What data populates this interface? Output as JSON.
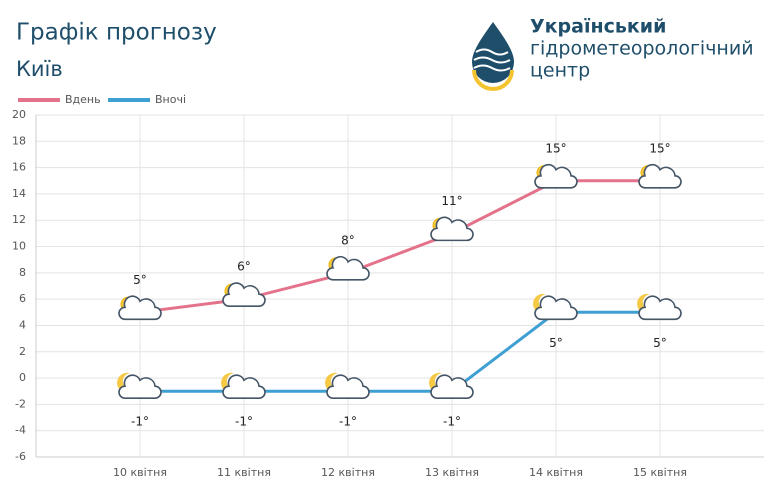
{
  "header": {
    "title": "Графік прогнозу",
    "city": "Київ"
  },
  "logo": {
    "lines": [
      "Український",
      "гідрометеорологічний",
      "центр"
    ]
  },
  "chart_data": {
    "type": "line",
    "categories": [
      "10 квітня",
      "11 квітня",
      "12 квітня",
      "13 квітня",
      "14 квітня",
      "15 квітня"
    ],
    "series": [
      {
        "name": "Вдень",
        "color": "#e4728a",
        "values": [
          5,
          6,
          8,
          11,
          15,
          15
        ],
        "value_labels": [
          "5°",
          "6°",
          "8°",
          "11°",
          "15°",
          "15°"
        ]
      },
      {
        "name": "Вночі",
        "color": "#3e9fd3",
        "values": [
          -1,
          -1,
          -1,
          -1,
          5,
          5
        ],
        "value_labels": [
          "-1°",
          "-1°",
          "-1°",
          "-1°",
          "5°",
          "5°"
        ]
      }
    ],
    "ylim": [
      -6,
      20
    ],
    "yticks": [
      -6,
      -4,
      -2,
      0,
      2,
      4,
      6,
      8,
      10,
      12,
      14,
      16,
      18,
      20
    ],
    "grid": true,
    "legend": "top-left"
  }
}
